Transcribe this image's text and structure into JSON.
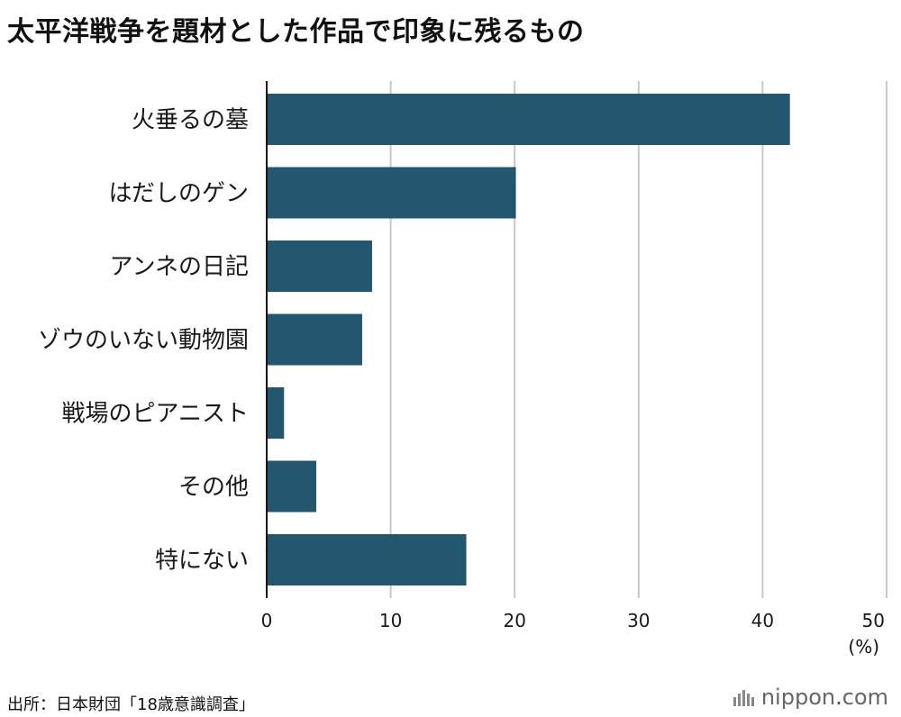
{
  "title": "太平洋戦争を題材とした作品で印象に残るもの",
  "unit_label": "(%)",
  "source": "出所：日本財団「18歳意識調査」",
  "logo": {
    "name": "nippon",
    "dot": ".",
    "suffix": "com"
  },
  "colors": {
    "bar": "#23566f",
    "grid": "#c8c8c8",
    "axis": "#111111"
  },
  "chart_data": {
    "type": "bar",
    "orientation": "horizontal",
    "categories": [
      "火垂るの墓",
      "はだしのゲン",
      "アンネの日記",
      "ゾウのいない動物園",
      "戦場のピアニスト",
      "その他",
      "特にない"
    ],
    "values": [
      42.2,
      20.1,
      8.5,
      7.7,
      1.4,
      4.0,
      16.1
    ],
    "title": "太平洋戦争を題材とした作品で印象に残るもの",
    "xlabel": "(%)",
    "ylabel": "",
    "xlim": [
      0,
      50
    ],
    "xticks": [
      "0",
      "10",
      "20",
      "30",
      "40",
      "50"
    ],
    "grid": true,
    "legend": "none"
  }
}
